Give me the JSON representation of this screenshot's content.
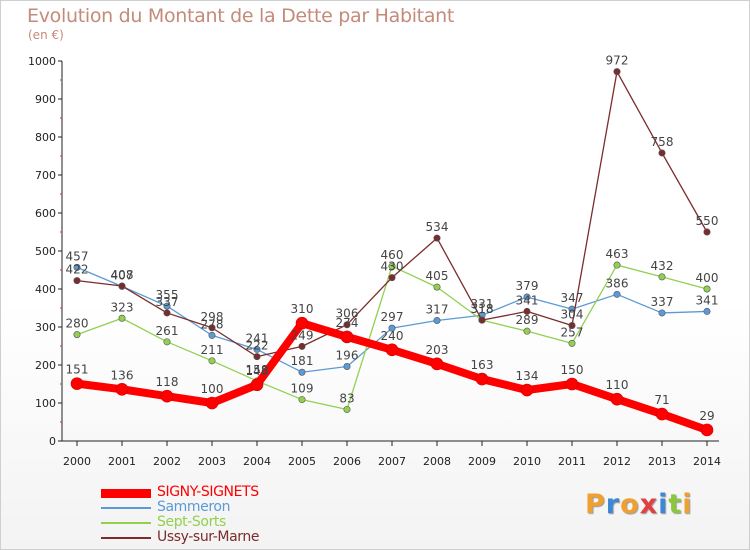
{
  "title": "Evolution du Montant de la Dette par Habitant",
  "unit": "(en €)",
  "brand": "Proxiti",
  "chart_data": {
    "type": "line",
    "title": "Evolution du Montant de la Dette par Habitant",
    "ylabel": "(en €)",
    "xlabel": "",
    "x": [
      "2000",
      "2001",
      "2002",
      "2003",
      "2004",
      "2005",
      "2006",
      "2007",
      "2008",
      "2009",
      "2010",
      "2011",
      "2012",
      "2013",
      "2014"
    ],
    "yticks": [
      "0",
      "100",
      "200",
      "300",
      "400",
      "500",
      "600",
      "700",
      "800",
      "900",
      "1000"
    ],
    "ylim": [
      0,
      1000
    ],
    "grid": false,
    "legend": "bottom-left",
    "series": [
      {
        "name": "SIGNY-SIGNETS",
        "color": "#ff0000",
        "emphasis": true,
        "values": [
          151,
          136,
          118,
          100,
          148,
          310,
          274,
          240,
          203,
          163,
          134,
          150,
          110,
          71,
          29
        ],
        "labels": [
          "151",
          "136",
          "118",
          "100",
          "148",
          "310",
          "274",
          "240",
          "203",
          "163",
          "134",
          "150",
          "110",
          "71",
          "29"
        ]
      },
      {
        "name": "Sammeron",
        "color": "#5b9bd5",
        "emphasis": false,
        "values": [
          457,
          407,
          355,
          278,
          241,
          181,
          196,
          297,
          317,
          331,
          379,
          347,
          386,
          337,
          341
        ],
        "labels": [
          "457",
          "407",
          "355",
          "278",
          "241",
          "181",
          "196",
          "297",
          "317",
          "331",
          "379",
          "347",
          "386",
          "337",
          "341"
        ]
      },
      {
        "name": "Sept-Sorts",
        "color": "#92d050",
        "emphasis": false,
        "values": [
          280,
          323,
          261,
          211,
          158,
          109,
          83,
          460,
          405,
          318,
          289,
          257,
          463,
          432,
          400
        ],
        "labels": [
          "280",
          "323",
          "261",
          "211",
          "158",
          "109",
          "83",
          "460",
          "405",
          "318",
          "289",
          "257",
          "463",
          "432",
          "400"
        ]
      },
      {
        "name": "Ussy-sur-Marne",
        "color": "#7b2c2c",
        "emphasis": false,
        "values": [
          422,
          408,
          337,
          298,
          222,
          249,
          306,
          430,
          534,
          318,
          341,
          304,
          972,
          758,
          550
        ],
        "labels": [
          "422",
          "408",
          "337",
          "298",
          "222",
          "249",
          "306",
          "430",
          "534",
          "318",
          "341",
          "304",
          "972",
          "758",
          "550"
        ]
      }
    ]
  }
}
